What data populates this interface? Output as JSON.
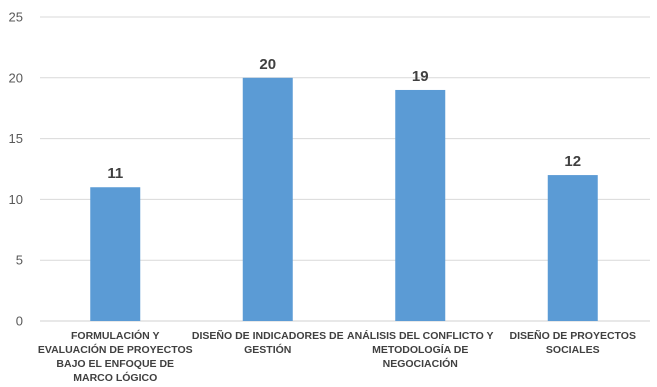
{
  "chart_data": {
    "type": "bar",
    "title": "",
    "xlabel": "",
    "ylabel": "",
    "categories": [
      "FORMULACIÓN Y EVALUACIÓN DE PROYECTOS BAJO EL ENFOQUE DE MARCO LÓGICO",
      "DISEÑO DE INDICADORES DE GESTIÓN",
      "ANÁLISIS DEL CONFLICTO Y METODOLOGÍA DE NEGOCIACIÓN",
      "DISEÑO DE PROYECTOS SOCIALES"
    ],
    "category_lines": [
      [
        "FORMULACIÓN Y",
        "EVALUACIÓN DE PROYECTOS",
        "BAJO EL ENFOQUE DE",
        "MARCO LÓGICO"
      ],
      [
        "DISEÑO DE INDICADORES DE",
        "GESTIÓN"
      ],
      [
        "ANÁLISIS DEL CONFLICTO Y",
        "METODOLOGÍA DE",
        "NEGOCIACIÓN"
      ],
      [
        "DISEÑO DE PROYECTOS",
        "SOCIALES"
      ]
    ],
    "values": [
      11,
      20,
      19,
      12
    ],
    "data_labels": [
      "11",
      "20",
      "19",
      "12"
    ],
    "ylim": [
      0,
      25
    ],
    "yticks": [
      "0",
      "5",
      "10",
      "15",
      "20",
      "25"
    ],
    "grid": true,
    "legend": "none",
    "bar_color": "#5B9BD5",
    "grid_color": "#D9D9D9"
  }
}
